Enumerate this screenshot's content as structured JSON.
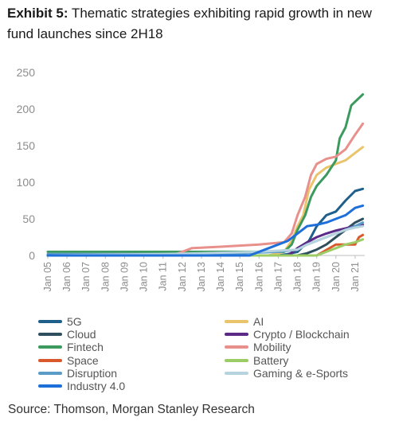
{
  "title_bold": "Exhibit 5:",
  "title_rest": " Thematic strategies exhibiting rapid growth in new fund launches since 2H18",
  "source": "Source: Thomson, Morgan Stanley Research",
  "chart_data": {
    "type": "line",
    "title": "Thematic strategies exhibiting rapid growth in new fund launches since 2H18",
    "xlabel": "",
    "ylabel": "",
    "x_range": [
      2005.0,
      2021.5
    ],
    "ylim": [
      0,
      250
    ],
    "y_ticks": [
      0,
      50,
      100,
      150,
      200,
      250
    ],
    "x_ticks": [
      {
        "label": "Jan 05",
        "x": 2005
      },
      {
        "label": "Jan 06",
        "x": 2006
      },
      {
        "label": "Jan 07",
        "x": 2007
      },
      {
        "label": "Jan 08",
        "x": 2008
      },
      {
        "label": "Jan 09",
        "x": 2009
      },
      {
        "label": "Jan 10",
        "x": 2010
      },
      {
        "label": "Jan 11",
        "x": 2011
      },
      {
        "label": "Jan 12",
        "x": 2012
      },
      {
        "label": "Jan 13",
        "x": 2013
      },
      {
        "label": "Jan 14",
        "x": 2014
      },
      {
        "label": "Jan 15",
        "x": 2015
      },
      {
        "label": "Jan 16",
        "x": 2016
      },
      {
        "label": "Jan 17",
        "x": 2017
      },
      {
        "label": "Jan 18",
        "x": 2018
      },
      {
        "label": "Jan 19",
        "x": 2019
      },
      {
        "label": "Jan 20",
        "x": 2020
      },
      {
        "label": "Jan 21",
        "x": 2021
      }
    ],
    "grid": false,
    "legend_position": "bottom",
    "series": [
      {
        "name": "5G",
        "color": "#1f5f8b",
        "x": [
          2005,
          2017.0,
          2017.5,
          2018.0,
          2018.6,
          2019.0,
          2019.5,
          2020.0,
          2020.5,
          2021.0,
          2021.4
        ],
        "y": [
          0,
          0,
          2,
          5,
          20,
          40,
          55,
          60,
          75,
          88,
          91
        ]
      },
      {
        "name": "AI",
        "color": "#e9c46a",
        "x": [
          2005,
          2016.5,
          2017.3,
          2017.7,
          2018.0,
          2018.3,
          2018.6,
          2019.0,
          2019.5,
          2020.0,
          2020.5,
          2021.0,
          2021.4
        ],
        "y": [
          0,
          0,
          5,
          20,
          40,
          55,
          90,
          110,
          120,
          125,
          130,
          140,
          148
        ]
      },
      {
        "name": "Cloud",
        "color": "#2f4f5f",
        "x": [
          2005,
          2018.0,
          2018.5,
          2019.0,
          2019.5,
          2020.0,
          2020.5,
          2021.0,
          2021.4
        ],
        "y": [
          0,
          0,
          3,
          8,
          15,
          25,
          35,
          45,
          50
        ]
      },
      {
        "name": "Crypto / Blockchain",
        "color": "#5b2a86",
        "x": [
          2005,
          2017.5,
          2018.0,
          2018.5,
          2019.0,
          2019.5,
          2020.0,
          2020.5,
          2021.0,
          2021.4
        ],
        "y": [
          0,
          0,
          10,
          18,
          25,
          30,
          34,
          37,
          40,
          42
        ]
      },
      {
        "name": "Fintech",
        "color": "#3c9a5f",
        "x": [
          2005,
          2016.5,
          2017.3,
          2017.7,
          2018.0,
          2018.4,
          2018.7,
          2019.0,
          2019.5,
          2020.0,
          2020.2,
          2020.5,
          2020.8,
          2021.0,
          2021.4
        ],
        "y": [
          5,
          5,
          5,
          15,
          35,
          55,
          80,
          95,
          110,
          130,
          160,
          175,
          205,
          210,
          220
        ]
      },
      {
        "name": "Mobility",
        "color": "#e8908c",
        "x": [
          2005,
          2011.5,
          2012.5,
          2014.0,
          2016.0,
          2017.3,
          2017.7,
          2018.0,
          2018.4,
          2018.7,
          2019.0,
          2019.5,
          2020.0,
          2020.5,
          2021.0,
          2021.4
        ],
        "y": [
          0,
          0,
          10,
          12,
          15,
          18,
          30,
          55,
          80,
          110,
          125,
          132,
          135,
          145,
          165,
          180
        ]
      },
      {
        "name": "Space",
        "color": "#d9592c",
        "x": [
          2005,
          2019.0,
          2020.0,
          2021.0,
          2021.2,
          2021.4
        ],
        "y": [
          0,
          0,
          15,
          15,
          25,
          28
        ]
      },
      {
        "name": "Battery",
        "color": "#9ccc65",
        "x": [
          2005,
          2019.0,
          2019.5,
          2020.0,
          2020.5,
          2021.0,
          2021.4
        ],
        "y": [
          0,
          0,
          5,
          10,
          15,
          18,
          22
        ]
      },
      {
        "name": "Disruption",
        "color": "#5b9bc8",
        "x": [
          2005,
          2013.0,
          2015.0,
          2017.0,
          2018.0,
          2018.5,
          2019.0,
          2020.0,
          2020.5,
          2021.0,
          2021.4
        ],
        "y": [
          2,
          2,
          3,
          5,
          8,
          15,
          20,
          30,
          35,
          40,
          45
        ]
      },
      {
        "name": "Gaming & e-Sports",
        "color": "#b7d3e0",
        "x": [
          2005,
          2011.0,
          2013.0,
          2016.0,
          2018.0,
          2018.5,
          2019.0,
          2019.5,
          2020.0,
          2020.5,
          2021.0,
          2021.4
        ],
        "y": [
          0,
          2,
          3,
          5,
          8,
          15,
          20,
          25,
          30,
          35,
          38,
          40
        ]
      },
      {
        "name": "Industry 4.0",
        "color": "#1e6fd9",
        "x": [
          2005,
          2015.5,
          2016.5,
          2017.0,
          2017.5,
          2018.0,
          2018.5,
          2019.0,
          2019.5,
          2020.0,
          2020.5,
          2021.0,
          2021.4
        ],
        "y": [
          0,
          0,
          10,
          15,
          20,
          30,
          40,
          42,
          45,
          50,
          55,
          65,
          68
        ]
      }
    ]
  }
}
